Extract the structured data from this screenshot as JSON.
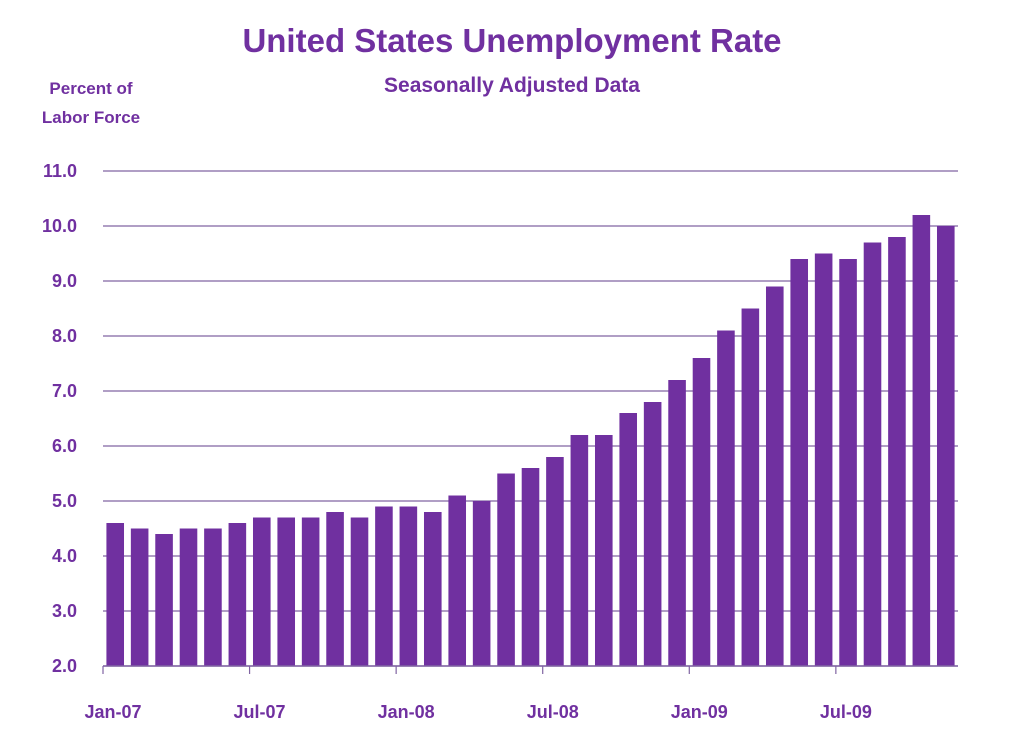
{
  "chart_data": {
    "type": "bar",
    "title": "United States Unemployment Rate",
    "subtitle": "Seasonally Adjusted Data",
    "ylabel_line1": "Percent of",
    "ylabel_line2": "Labor Force",
    "ylim": [
      2.0,
      11.0
    ],
    "yticks": [
      "2.0",
      "3.0",
      "4.0",
      "5.0",
      "6.0",
      "7.0",
      "8.0",
      "9.0",
      "10.0",
      "11.0"
    ],
    "xtick_labels": [
      {
        "index": 0,
        "label": "Jan-07"
      },
      {
        "index": 6,
        "label": "Jul-07"
      },
      {
        "index": 12,
        "label": "Jan-08"
      },
      {
        "index": 18,
        "label": "Jul-08"
      },
      {
        "index": 24,
        "label": "Jan-09"
      },
      {
        "index": 30,
        "label": "Jul-09"
      }
    ],
    "categories": [
      "Jan-07",
      "Feb-07",
      "Mar-07",
      "Apr-07",
      "May-07",
      "Jun-07",
      "Jul-07",
      "Aug-07",
      "Sep-07",
      "Oct-07",
      "Nov-07",
      "Dec-07",
      "Jan-08",
      "Feb-08",
      "Mar-08",
      "Apr-08",
      "May-08",
      "Jun-08",
      "Jul-08",
      "Aug-08",
      "Sep-08",
      "Oct-08",
      "Nov-08",
      "Dec-08",
      "Jan-09",
      "Feb-09",
      "Mar-09",
      "Apr-09",
      "May-09",
      "Jun-09",
      "Jul-09",
      "Aug-09",
      "Sep-09",
      "Oct-09",
      "Nov-09"
    ],
    "values": [
      4.6,
      4.5,
      4.4,
      4.5,
      4.5,
      4.6,
      4.7,
      4.7,
      4.7,
      4.8,
      4.7,
      4.9,
      4.9,
      4.8,
      5.1,
      5.0,
      5.5,
      5.6,
      5.8,
      6.2,
      6.2,
      6.6,
      6.8,
      7.2,
      7.6,
      8.1,
      8.5,
      8.9,
      9.4,
      9.5,
      9.4,
      9.7,
      9.8,
      10.2,
      10.0
    ],
    "grid": true,
    "bar_color": "#7030a0",
    "text_color": "#7030a0",
    "gridline_color": "#8064a2"
  }
}
